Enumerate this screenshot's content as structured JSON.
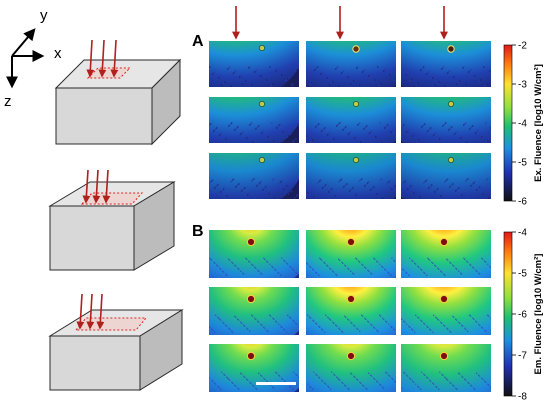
{
  "axes": {
    "x": "x",
    "y": "y",
    "z": "z"
  },
  "panels": {
    "A": {
      "label": "A",
      "colorbar": {
        "title": "Ex. Fluence [log10 W/cm²]",
        "ticks": [
          "-2",
          "-3",
          "-4",
          "-5",
          "-6"
        ]
      }
    },
    "B": {
      "label": "B",
      "colorbar": {
        "title": "Em. Fluence [log10 W/cm²]",
        "ticks": [
          "-4",
          "-5",
          "-6",
          "-7",
          "-8"
        ]
      }
    }
  },
  "colors": {
    "arrow": "#b0201c",
    "target": "#e02020",
    "box_face": "#d8d8d8",
    "box_edge": "#2a2a2a"
  }
}
